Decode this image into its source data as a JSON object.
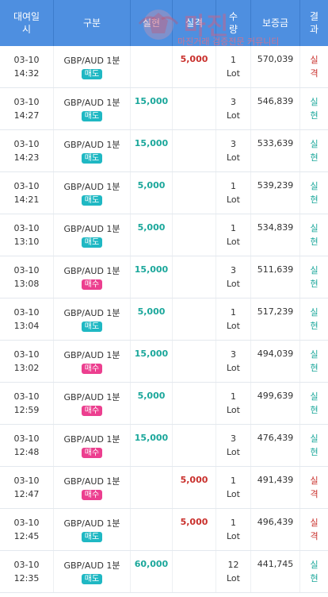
{
  "headers": [
    "대여일시",
    "구분",
    "실현",
    "실격",
    "수량",
    "보증금",
    "결과"
  ],
  "watermark": {
    "title": "마진",
    "subtitle": "마진거래 검증전문 커뮤니티"
  },
  "rows": [
    {
      "date": "03-10",
      "time": "14:32",
      "product": "GBP/AUD 1분",
      "side": "매도",
      "side_type": "sell",
      "profit": "",
      "loss": "5,000",
      "qty": "1",
      "unit": "Lot",
      "deposit": "570,039",
      "result1": "실",
      "result2": "격",
      "result_type": "loss"
    },
    {
      "date": "03-10",
      "time": "14:27",
      "product": "GBP/AUD 1분",
      "side": "매도",
      "side_type": "sell",
      "profit": "15,000",
      "loss": "",
      "qty": "3",
      "unit": "Lot",
      "deposit": "546,839",
      "result1": "실",
      "result2": "현",
      "result_type": "profit"
    },
    {
      "date": "03-10",
      "time": "14:23",
      "product": "GBP/AUD 1분",
      "side": "매도",
      "side_type": "sell",
      "profit": "15,000",
      "loss": "",
      "qty": "3",
      "unit": "Lot",
      "deposit": "533,639",
      "result1": "실",
      "result2": "현",
      "result_type": "profit"
    },
    {
      "date": "03-10",
      "time": "14:21",
      "product": "GBP/AUD 1분",
      "side": "매도",
      "side_type": "sell",
      "profit": "5,000",
      "loss": "",
      "qty": "1",
      "unit": "Lot",
      "deposit": "539,239",
      "result1": "실",
      "result2": "현",
      "result_type": "profit"
    },
    {
      "date": "03-10",
      "time": "13:10",
      "product": "GBP/AUD 1분",
      "side": "매도",
      "side_type": "sell",
      "profit": "5,000",
      "loss": "",
      "qty": "1",
      "unit": "Lot",
      "deposit": "534,839",
      "result1": "실",
      "result2": "현",
      "result_type": "profit"
    },
    {
      "date": "03-10",
      "time": "13:08",
      "product": "GBP/AUD 1분",
      "side": "매수",
      "side_type": "buy",
      "profit": "15,000",
      "loss": "",
      "qty": "3",
      "unit": "Lot",
      "deposit": "511,639",
      "result1": "실",
      "result2": "현",
      "result_type": "profit"
    },
    {
      "date": "03-10",
      "time": "13:04",
      "product": "GBP/AUD 1분",
      "side": "매도",
      "side_type": "sell",
      "profit": "5,000",
      "loss": "",
      "qty": "1",
      "unit": "Lot",
      "deposit": "517,239",
      "result1": "실",
      "result2": "현",
      "result_type": "profit"
    },
    {
      "date": "03-10",
      "time": "13:02",
      "product": "GBP/AUD 1분",
      "side": "매수",
      "side_type": "buy",
      "profit": "15,000",
      "loss": "",
      "qty": "3",
      "unit": "Lot",
      "deposit": "494,039",
      "result1": "실",
      "result2": "현",
      "result_type": "profit"
    },
    {
      "date": "03-10",
      "time": "12:59",
      "product": "GBP/AUD 1분",
      "side": "매수",
      "side_type": "buy",
      "profit": "5,000",
      "loss": "",
      "qty": "1",
      "unit": "Lot",
      "deposit": "499,639",
      "result1": "실",
      "result2": "현",
      "result_type": "profit"
    },
    {
      "date": "03-10",
      "time": "12:48",
      "product": "GBP/AUD 1분",
      "side": "매수",
      "side_type": "buy",
      "profit": "15,000",
      "loss": "",
      "qty": "3",
      "unit": "Lot",
      "deposit": "476,439",
      "result1": "실",
      "result2": "현",
      "result_type": "profit"
    },
    {
      "date": "03-10",
      "time": "12:47",
      "product": "GBP/AUD 1분",
      "side": "매수",
      "side_type": "buy",
      "profit": "",
      "loss": "5,000",
      "qty": "1",
      "unit": "Lot",
      "deposit": "491,439",
      "result1": "실",
      "result2": "격",
      "result_type": "loss"
    },
    {
      "date": "03-10",
      "time": "12:45",
      "product": "GBP/AUD 1분",
      "side": "매도",
      "side_type": "sell",
      "profit": "",
      "loss": "5,000",
      "qty": "1",
      "unit": "Lot",
      "deposit": "496,439",
      "result1": "실",
      "result2": "격",
      "result_type": "loss"
    },
    {
      "date": "03-10",
      "time": "12:35",
      "product": "GBP/AUD 1분",
      "side": "매도",
      "side_type": "sell",
      "profit": "60,000",
      "loss": "",
      "qty": "12",
      "unit": "Lot",
      "deposit": "441,745",
      "result1": "실",
      "result2": "현",
      "result_type": "profit"
    }
  ]
}
